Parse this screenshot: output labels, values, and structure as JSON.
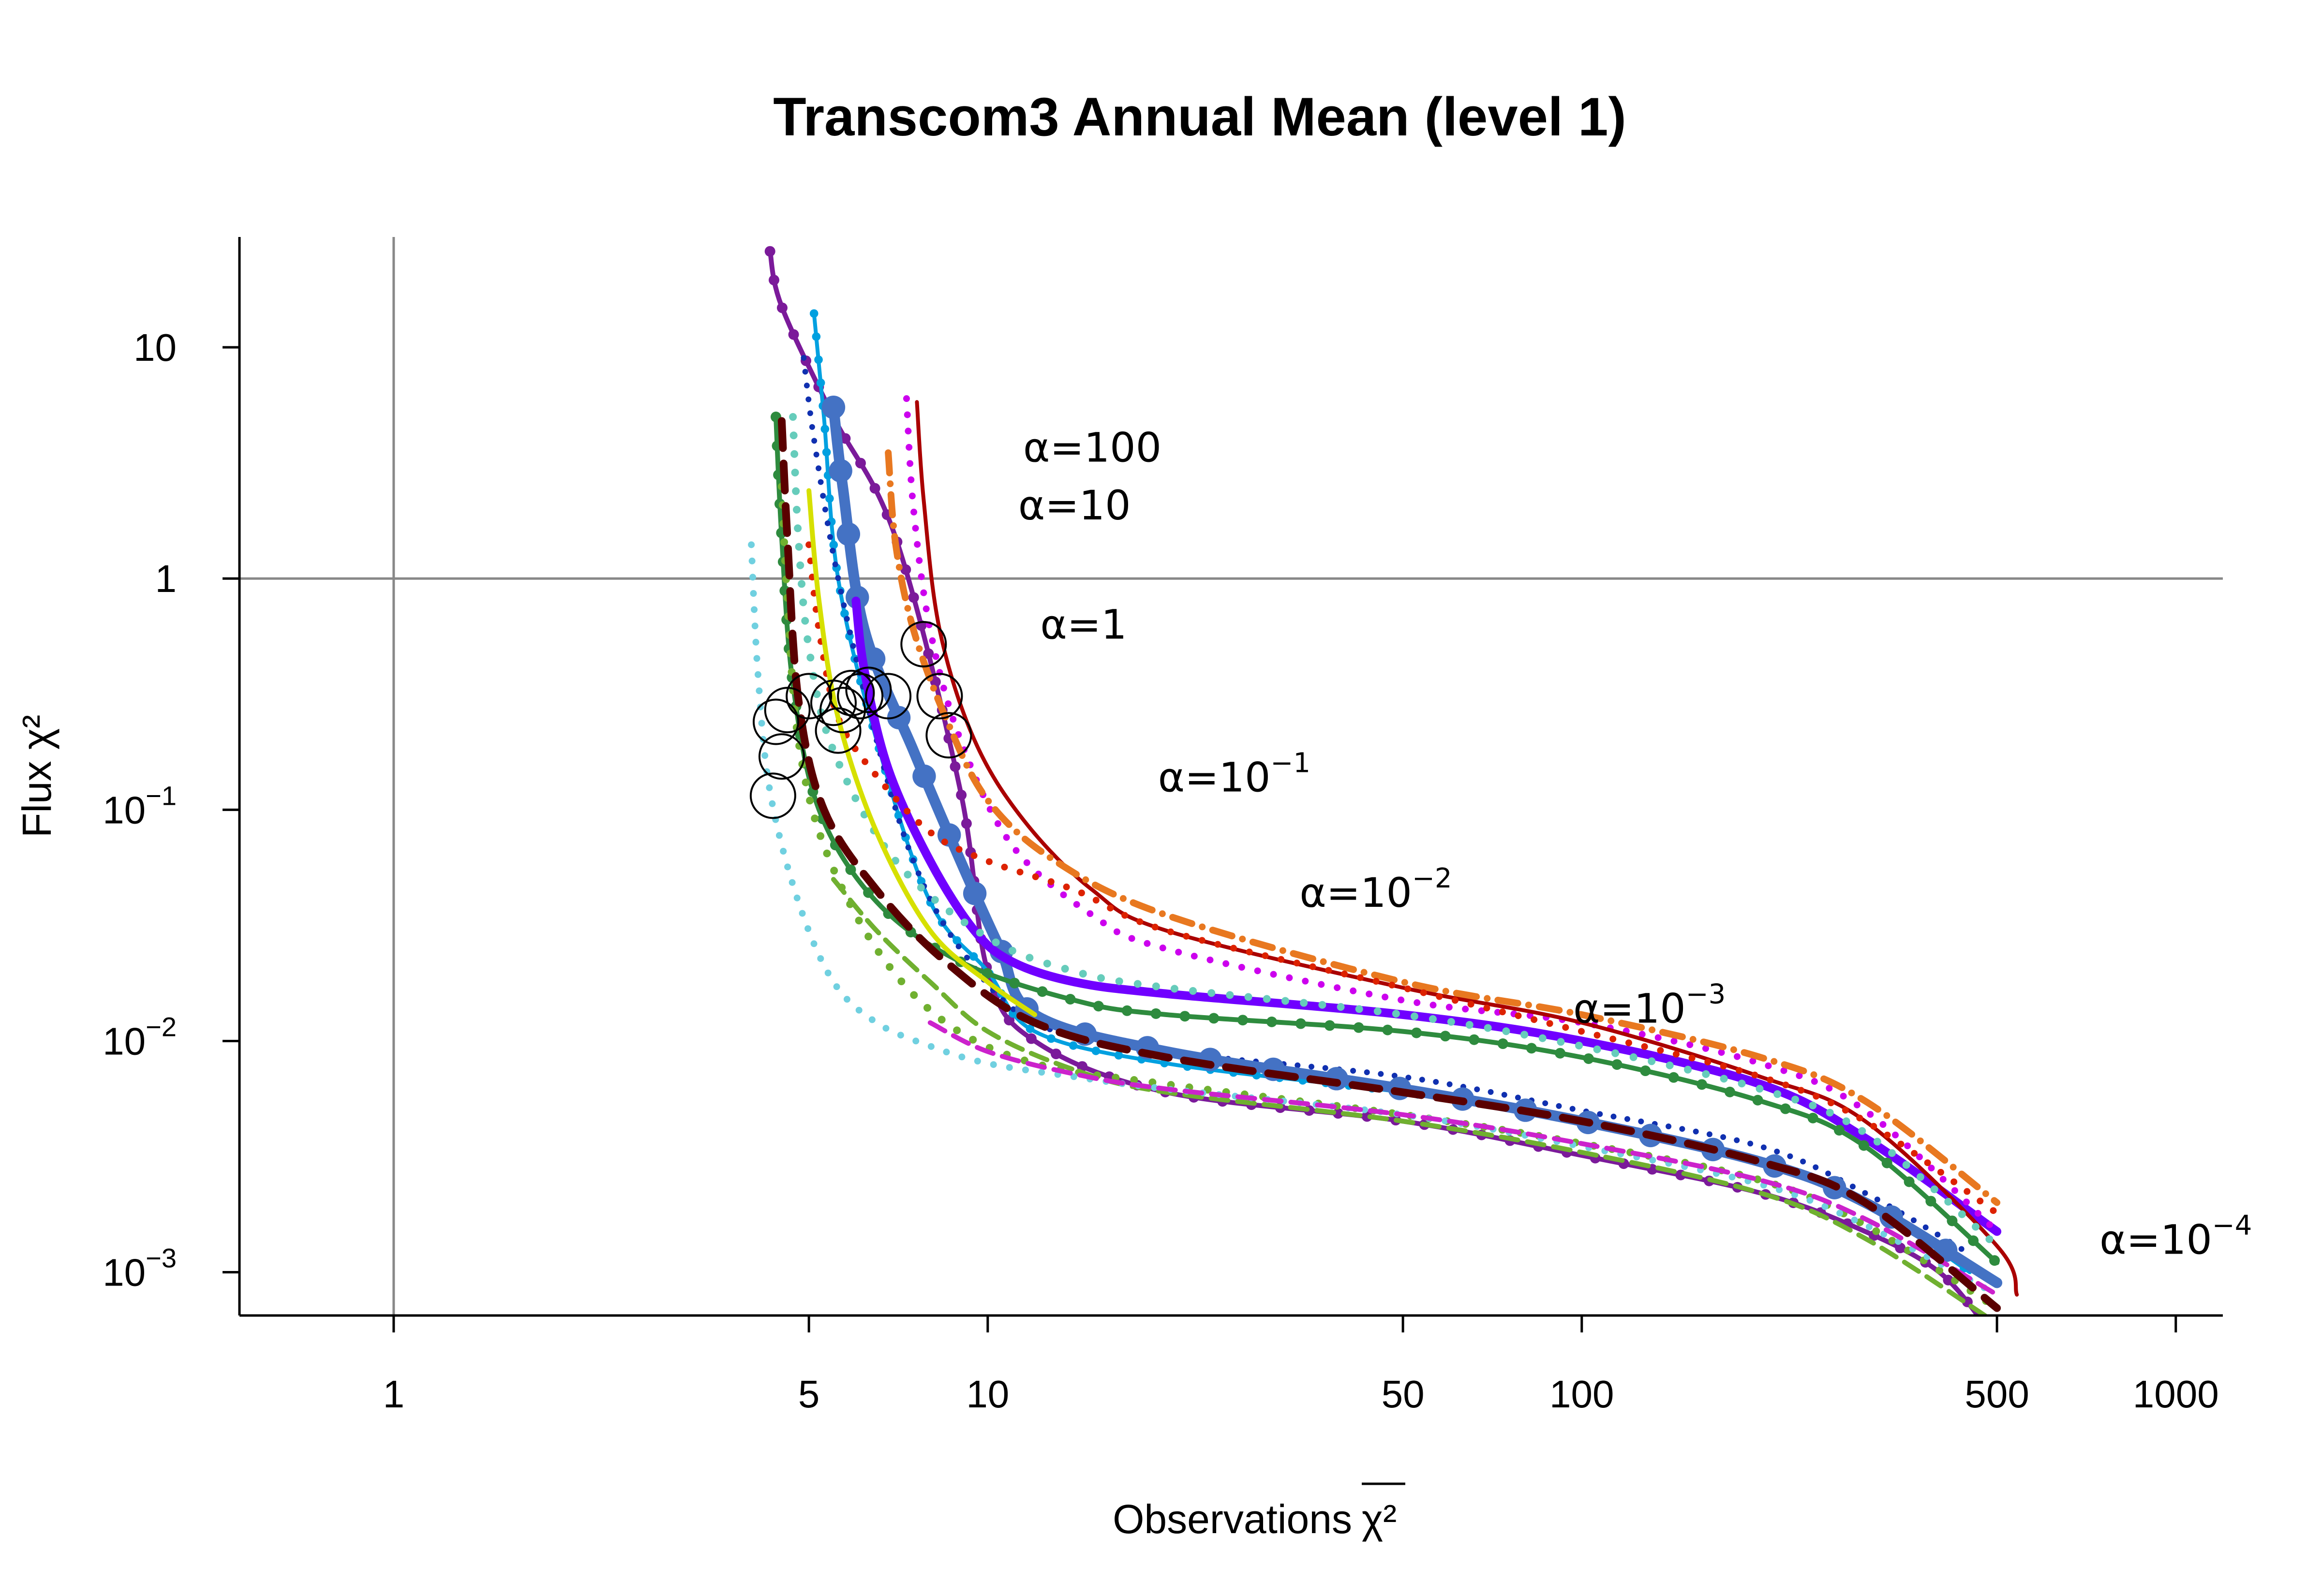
{
  "chart_data": {
    "type": "line",
    "title": "Transcom3 Annual Mean (level 1)",
    "xlabel": "Observations",
    "xlabel_symbol": "χ²",
    "ylabel": "Flux χ²",
    "x_scale": "log",
    "y_scale": "log",
    "xlim": [
      0.55,
      1200
    ],
    "ylim": [
      0.00065,
      30
    ],
    "x_ticks": [
      {
        "value": 1,
        "label": "1"
      },
      {
        "value": 5,
        "label": "5"
      },
      {
        "value": 10,
        "label": "10"
      },
      {
        "value": 50,
        "label": "50"
      },
      {
        "value": 100,
        "label": "100"
      },
      {
        "value": 500,
        "label": "500"
      },
      {
        "value": 1000,
        "label": "1000"
      }
    ],
    "y_ticks": [
      {
        "value": 10,
        "label": "10",
        "sup": ""
      },
      {
        "value": 1,
        "label": "1",
        "sup": ""
      },
      {
        "value": 0.1,
        "label": "10",
        "sup": "−1"
      },
      {
        "value": 0.01,
        "label": "10",
        "sup": "−2"
      },
      {
        "value": 0.001,
        "label": "10",
        "sup": "−3"
      }
    ],
    "reference_lines": {
      "x": 1,
      "y": 1
    },
    "annotations": [
      {
        "text": "α=100",
        "sup": "",
        "x": 15,
        "y": 3.2
      },
      {
        "text": "α=10",
        "sup": "",
        "x": 14,
        "y": 1.8
      },
      {
        "text": "α=1",
        "sup": "",
        "x": 14.5,
        "y": 0.55
      },
      {
        "text": "α=10",
        "sup": "−1",
        "x": 26,
        "y": 0.12
      },
      {
        "text": "α=10",
        "sup": "−2",
        "x": 45,
        "y": 0.038
      },
      {
        "text": "α=10",
        "sup": "−3",
        "x": 130,
        "y": 0.012
      },
      {
        "text": "α=10",
        "sup": "−4",
        "x": 1000,
        "y": 0.0012
      }
    ],
    "series": [
      {
        "color": "#7b1a9a",
        "style": "solid-dots",
        "width": 10,
        "x": [
          4.3,
          4.5,
          5.5,
          7.0,
          9.0,
          10,
          12,
          20,
          50,
          100,
          200,
          300,
          400,
          480
        ],
        "y": [
          26,
          15,
          5.0,
          1.5,
          0.12,
          0.02,
          0.01,
          0.006,
          0.0045,
          0.0032,
          0.0022,
          0.0015,
          0.001,
          0.00058
        ]
      },
      {
        "color": "#00a0e0",
        "style": "solid-dots",
        "width": 8,
        "x": [
          5.1,
          5.3,
          5.6,
          6.5,
          8,
          10,
          12,
          20,
          50,
          100,
          200,
          300,
          450
        ],
        "y": [
          14,
          5,
          1.0,
          0.2,
          0.04,
          0.02,
          0.011,
          0.008,
          0.006,
          0.0045,
          0.003,
          0.002,
          0.001
        ]
      },
      {
        "color": "#1030b0",
        "style": "dotted",
        "width": 12,
        "x": [
          4.9,
          5.1,
          5.6,
          6.5,
          7.5,
          9,
          12,
          20,
          50,
          100,
          200,
          300,
          450
        ],
        "y": [
          9,
          4,
          1.0,
          0.2,
          0.06,
          0.025,
          0.012,
          0.009,
          0.007,
          0.005,
          0.0035,
          0.0022,
          0.0012
        ]
      },
      {
        "color": "#4472c4",
        "style": "solid-dots",
        "width": 22,
        "x": [
          5.5,
          5.7,
          6.2,
          7.5,
          9.0,
          10.5,
          12,
          20,
          50,
          100,
          200,
          300,
          500
        ],
        "y": [
          5.5,
          2.5,
          0.6,
          0.18,
          0.06,
          0.025,
          0.013,
          0.009,
          0.0062,
          0.0045,
          0.003,
          0.002,
          0.0009
        ]
      },
      {
        "color": "#7000ff",
        "style": "solid",
        "width": 18,
        "x": [
          6.0,
          6.2,
          6.8,
          8.0,
          9.5,
          11,
          14,
          20,
          50,
          100,
          200,
          300,
          500
        ],
        "y": [
          0.8,
          0.4,
          0.15,
          0.06,
          0.03,
          0.022,
          0.018,
          0.016,
          0.013,
          0.01,
          0.0065,
          0.0038,
          0.0015
        ]
      },
      {
        "color": "#cc00ee",
        "style": "dotted",
        "width": 14,
        "x": [
          7.3,
          7.5,
          8.0,
          9.0,
          11,
          15,
          20,
          50,
          100,
          200,
          300,
          500
        ],
        "y": [
          6,
          2,
          0.6,
          0.2,
          0.07,
          0.035,
          0.025,
          0.015,
          0.012,
          0.008,
          0.005,
          0.0015
        ]
      },
      {
        "color": "#aa0000",
        "style": "solid",
        "width": 8,
        "x": [
          7.6,
          7.8,
          8.3,
          9.5,
          11.5,
          15,
          20,
          50,
          100,
          200,
          300,
          500,
          540
        ],
        "y": [
          5.8,
          2.2,
          0.6,
          0.2,
          0.09,
          0.045,
          0.03,
          0.017,
          0.012,
          0.007,
          0.0045,
          0.0013,
          0.0008
        ]
      },
      {
        "color": "#e87820",
        "style": "dashdot",
        "width": 14,
        "x": [
          6.8,
          7.0,
          7.5,
          8.5,
          10,
          13,
          20,
          50,
          100,
          200,
          300,
          500
        ],
        "y": [
          3.5,
          1.4,
          0.6,
          0.25,
          0.11,
          0.06,
          0.035,
          0.018,
          0.013,
          0.0085,
          0.0055,
          0.002
        ]
      },
      {
        "color": "#dd2200",
        "style": "dotted",
        "width": 14,
        "x": [
          5.0,
          5.2,
          5.6,
          6.5,
          8,
          10,
          14,
          20,
          50,
          100,
          200,
          300,
          500
        ],
        "y": [
          1.4,
          0.6,
          0.25,
          0.14,
          0.08,
          0.06,
          0.045,
          0.03,
          0.017,
          0.011,
          0.007,
          0.0045,
          0.0018
        ]
      },
      {
        "color": "#66ccbb",
        "style": "dotted",
        "width": 16,
        "x": [
          4.7,
          4.8,
          5.0,
          5.5,
          7,
          10,
          14,
          20,
          50,
          100,
          200,
          300,
          500
        ],
        "y": [
          5,
          1.5,
          0.5,
          0.18,
          0.06,
          0.028,
          0.02,
          0.017,
          0.013,
          0.0095,
          0.0062,
          0.004,
          0.0013
        ]
      },
      {
        "color": "#2e8b3e",
        "style": "solid-dots",
        "width": 10,
        "x": [
          4.4,
          4.5,
          4.7,
          5.2,
          6.5,
          9,
          14,
          20,
          50,
          100,
          200,
          300,
          500
        ],
        "y": [
          5,
          1.5,
          0.35,
          0.1,
          0.04,
          0.022,
          0.015,
          0.013,
          0.011,
          0.0085,
          0.0055,
          0.0035,
          0.0011
        ]
      },
      {
        "color": "#70b030",
        "style": "dotted",
        "width": 16,
        "x": [
          4.5,
          4.6,
          4.8,
          5.3,
          6.5,
          8.5,
          12,
          20,
          50,
          100,
          200,
          300,
          500
        ],
        "y": [
          2.5,
          0.8,
          0.2,
          0.07,
          0.025,
          0.012,
          0.008,
          0.0065,
          0.0048,
          0.0036,
          0.0025,
          0.0016,
          0.0007
        ]
      },
      {
        "color": "#70b030",
        "style": "dashed",
        "width": 10,
        "x": [
          5.5,
          6.5,
          8,
          10,
          14,
          20,
          50,
          100,
          200,
          300,
          500
        ],
        "y": [
          0.05,
          0.03,
          0.018,
          0.011,
          0.0075,
          0.006,
          0.0045,
          0.0033,
          0.0022,
          0.0014,
          0.0006
        ]
      },
      {
        "color": "#70d0e0",
        "style": "dotted",
        "width": 14,
        "x": [
          4.0,
          4.1,
          4.3,
          4.8,
          5.5,
          6.5,
          8,
          10,
          14,
          20,
          50,
          100,
          200,
          300,
          500
        ],
        "y": [
          1.4,
          0.4,
          0.12,
          0.04,
          0.018,
          0.012,
          0.0095,
          0.008,
          0.007,
          0.0062,
          0.0048,
          0.0035,
          0.0024,
          0.0016,
          0.0008
        ]
      },
      {
        "color": "#cc22cc",
        "style": "dashed",
        "width": 10,
        "x": [
          8,
          10,
          14,
          20,
          50,
          100,
          200,
          300,
          500
        ],
        "y": [
          0.012,
          0.009,
          0.0072,
          0.0062,
          0.0048,
          0.0036,
          0.0025,
          0.0017,
          0.0008
        ]
      },
      {
        "color": "#d6e000",
        "style": "solid",
        "width": 10,
        "x": [
          5.0,
          5.2,
          5.6,
          6.5,
          8,
          10,
          12
        ],
        "y": [
          2.4,
          0.8,
          0.25,
          0.08,
          0.03,
          0.018,
          0.013
        ]
      },
      {
        "color": "#5a0000",
        "style": "dashed",
        "width": 16,
        "x": [
          4.5,
          4.6,
          4.8,
          5.3,
          6.5,
          8.5,
          12,
          20,
          50,
          100,
          200,
          300,
          500
        ],
        "y": [
          4.8,
          1.5,
          0.3,
          0.1,
          0.045,
          0.022,
          0.012,
          0.0085,
          0.006,
          0.0045,
          0.003,
          0.002,
          0.0007
        ]
      }
    ],
    "markers": [
      {
        "x": 7.8,
        "y": 0.52
      },
      {
        "x": 8.3,
        "y": 0.31
      },
      {
        "x": 8.6,
        "y": 0.21
      },
      {
        "x": 6.8,
        "y": 0.31
      },
      {
        "x": 6.3,
        "y": 0.33
      },
      {
        "x": 6.1,
        "y": 0.31
      },
      {
        "x": 5.9,
        "y": 0.32
      },
      {
        "x": 5.7,
        "y": 0.27
      },
      {
        "x": 5.6,
        "y": 0.22
      },
      {
        "x": 5.5,
        "y": 0.29
      },
      {
        "x": 5.0,
        "y": 0.31
      },
      {
        "x": 4.6,
        "y": 0.27
      },
      {
        "x": 4.4,
        "y": 0.24
      },
      {
        "x": 4.5,
        "y": 0.17
      },
      {
        "x": 4.35,
        "y": 0.115
      }
    ]
  }
}
